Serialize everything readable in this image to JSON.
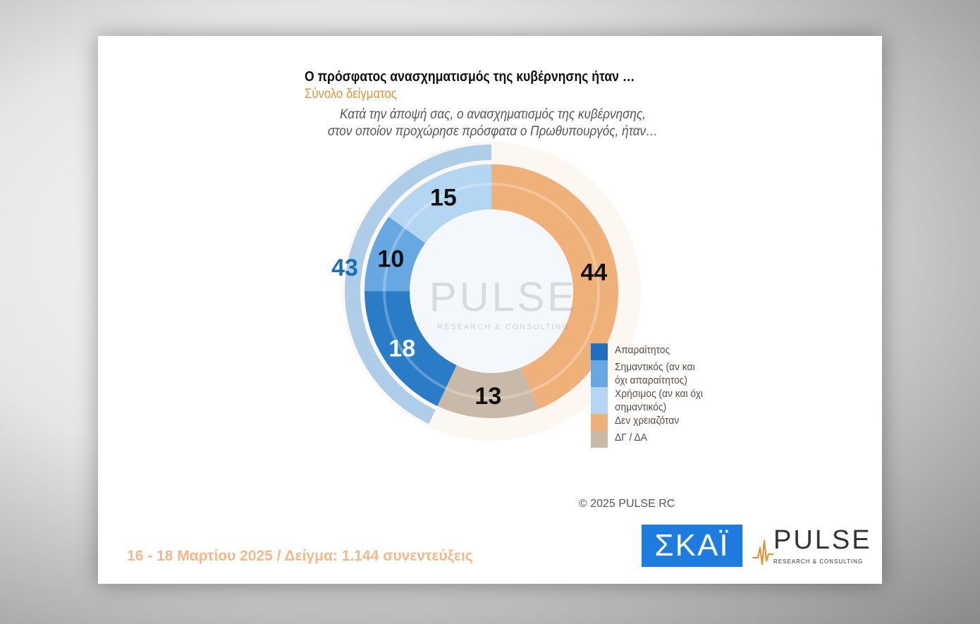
{
  "header": {
    "title": "Ο πρόσφατος ανασχηματισμός της κυβέρνησης ήταν …",
    "subtitle": "Σύνολο δείγματος",
    "question_line1": "Κατά την άποψή σας, ο ανασχηματισμός της κυβέρνησης,",
    "question_line2": "στον οποίον προχώρησε πρόσφατα ο Πρωθυπουργός, ήταν…"
  },
  "chart_data": {
    "type": "pie",
    "donut": true,
    "unit": "%",
    "categories": [
      "Δεν χρειαζόταν",
      "ΔΓ / ΔΑ",
      "Απαραίτητος",
      "Σημαντικός (αν και όχι απαραίτητος)",
      "Χρήσιμος (αν και όχι σημαντικός)"
    ],
    "values": [
      44,
      13,
      18,
      10,
      15
    ],
    "labels": [
      "44",
      "13",
      "18",
      "10",
      "15"
    ],
    "colors": [
      "#f0b07a",
      "#c9b9a8",
      "#2a7cc6",
      "#67a8e3",
      "#b5d6f3"
    ],
    "aggregate": {
      "label": "43",
      "value": 43,
      "of": [
        "Απαραίτητος",
        "Σημαντικός (αν και όχι απαραίτητος)",
        "Χρήσιμος (αν και όχι σημαντικός)"
      ],
      "color": "#1a6fba"
    },
    "legend": {
      "position": "bottom-right",
      "entries": [
        "Απαραίτητος",
        "Σημαντικός (αν και όχι απαραίτητος)",
        "Χρήσιμος (αν και όχι σημαντικός)",
        "Δεν χρειαζόταν",
        "ΔΓ / ΔΑ"
      ],
      "colors": [
        "#1f6fbd",
        "#67a8e3",
        "#b5d6f3",
        "#f0b07a",
        "#c9b9a8"
      ]
    }
  },
  "watermark": {
    "word": "PULSE",
    "sub": "RESEARCH & CONSULTING"
  },
  "copyright": "©  2025  PULSE RC",
  "footer": "16 - 18 Μαρτίου 2025  /  Δείγμα:  1.144 συνεντεύξεις",
  "logos": {
    "skai": "ΣΚΑΪ",
    "pulse": "PULSE",
    "pulse_sub": "RESEARCH & CONSULTING"
  }
}
